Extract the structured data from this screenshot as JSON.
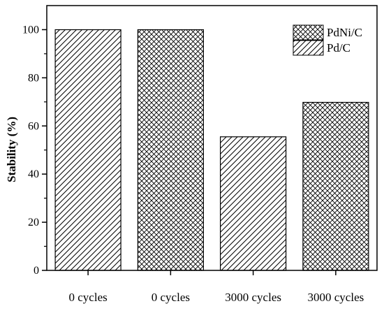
{
  "chart_data": {
    "type": "bar",
    "title": "",
    "xlabel": "",
    "ylabel": "Stability (%)",
    "categories": [
      "0 cycles",
      "0 cycles",
      "3000 cycles",
      "3000 cycles"
    ],
    "values": [
      100,
      100,
      55.5,
      69.8
    ],
    "bar_series": [
      "Pd/C",
      "PdNi/C",
      "Pd/C",
      "PdNi/C"
    ],
    "series": [
      {
        "name": "PdNi/C",
        "pattern": "crosshatch"
      },
      {
        "name": "Pd/C",
        "pattern": "diagonal"
      }
    ],
    "ylim": [
      0,
      110
    ],
    "yticks": [
      0,
      20,
      40,
      60,
      80,
      100
    ],
    "grid": false,
    "legend_position": "top-right",
    "colors": {
      "stroke": "#000000",
      "fill": "#ffffff"
    }
  }
}
